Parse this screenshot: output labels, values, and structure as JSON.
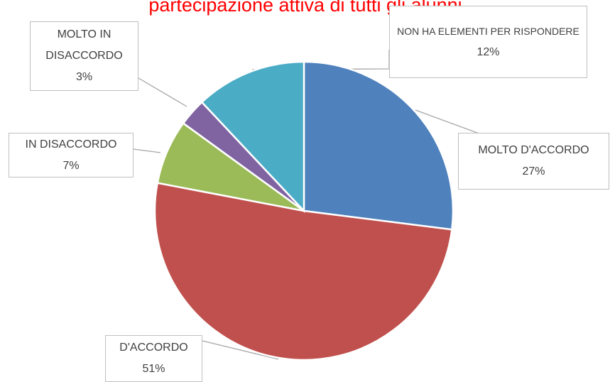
{
  "chart_data": {
    "type": "pie",
    "title": "partecipazione attiva di tutti gli alunni",
    "categories": [
      "MOLTO D'ACCORDO",
      "D'ACCORDO",
      "IN DISACCORDO",
      "MOLTO IN DISACCORDO",
      "NON HA ELEMENTI PER RISPONDERE"
    ],
    "values": [
      27,
      51,
      7,
      3,
      12
    ],
    "value_labels": [
      "27%",
      "51%",
      "7%",
      "3%",
      "12%"
    ],
    "colors": [
      "#4f81bd",
      "#c0504d",
      "#9bbb59",
      "#8064a2",
      "#4bacc6"
    ],
    "title_color": "#ff0000"
  }
}
